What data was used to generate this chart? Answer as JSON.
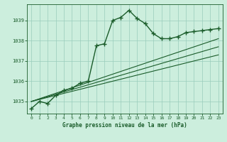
{
  "title": "Graphe pression niveau de la mer (hPa)",
  "bg_color": "#cceedd",
  "grid_color": "#99ccbb",
  "line_color": "#1a5c2a",
  "xlim": [
    -0.5,
    23.5
  ],
  "ylim": [
    1034.4,
    1039.8
  ],
  "yticks": [
    1035,
    1036,
    1037,
    1038,
    1039
  ],
  "xticks": [
    0,
    1,
    2,
    3,
    4,
    5,
    6,
    7,
    8,
    9,
    10,
    11,
    12,
    13,
    14,
    15,
    16,
    17,
    18,
    19,
    20,
    21,
    22,
    23
  ],
  "series": [
    {
      "x": [
        0,
        1,
        2,
        3,
        4,
        5,
        6,
        7,
        8,
        9,
        10,
        11,
        12,
        13,
        14,
        15,
        16,
        17,
        18,
        19,
        20,
        21,
        22,
        23
      ],
      "y": [
        1034.65,
        1035.0,
        1034.9,
        1035.3,
        1035.55,
        1035.65,
        1035.9,
        1036.0,
        1037.75,
        1037.85,
        1039.0,
        1039.15,
        1039.5,
        1039.1,
        1038.85,
        1038.35,
        1038.1,
        1038.1,
        1038.2,
        1038.4,
        1038.45,
        1038.5,
        1038.55,
        1038.6
      ],
      "marker": "+",
      "markersize": 4,
      "linewidth": 1.0,
      "linestyle": "-"
    },
    {
      "x": [
        0,
        23
      ],
      "y": [
        1035.0,
        1038.1
      ],
      "marker": null,
      "markersize": 0,
      "linewidth": 0.8,
      "linestyle": "-"
    },
    {
      "x": [
        0,
        23
      ],
      "y": [
        1035.0,
        1037.7
      ],
      "marker": null,
      "markersize": 0,
      "linewidth": 0.8,
      "linestyle": "-"
    },
    {
      "x": [
        0,
        23
      ],
      "y": [
        1035.0,
        1037.3
      ],
      "marker": null,
      "markersize": 0,
      "linewidth": 0.8,
      "linestyle": "-"
    }
  ]
}
